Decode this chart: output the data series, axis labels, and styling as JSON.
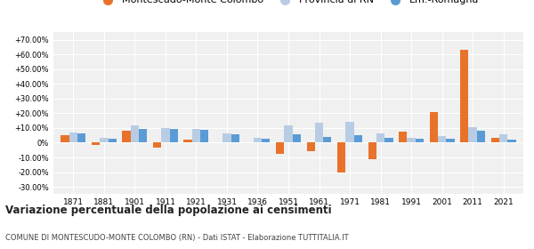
{
  "years": [
    1871,
    1881,
    1901,
    1911,
    1921,
    1931,
    1936,
    1951,
    1961,
    1971,
    1981,
    1991,
    2001,
    2011,
    2021
  ],
  "montescudo": [
    5.0,
    -1.5,
    8.0,
    -3.5,
    2.0,
    0.5,
    0.1,
    -7.5,
    -6.0,
    -20.5,
    -11.0,
    7.5,
    21.0,
    63.0,
    3.5
  ],
  "provincia_rn": [
    7.0,
    3.5,
    11.5,
    10.0,
    9.5,
    6.5,
    3.5,
    12.0,
    13.5,
    14.0,
    6.5,
    3.5,
    4.5,
    10.5,
    5.5
  ],
  "emilia_romagna": [
    6.5,
    3.0,
    9.5,
    9.5,
    9.0,
    6.0,
    3.0,
    5.5,
    4.0,
    5.0,
    3.5,
    3.0,
    2.5,
    8.0,
    2.0
  ],
  "color_montescudo": "#e8722a",
  "color_provincia": "#b8cce4",
  "color_emilia": "#5b9bd5",
  "title1": "Variazione percentuale della popolazione ai censimenti",
  "title2": "COMUNE DI MONTESCUDO-MONTE COLOMBO (RN) - Dati ISTAT - Elaborazione TUTTITALIA.IT",
  "ylim": [
    -35,
    75
  ],
  "yticks": [
    -30,
    -20,
    -10,
    0,
    10,
    20,
    30,
    40,
    50,
    60,
    70
  ],
  "background_color": "#f0f0f0",
  "legend_labels": [
    "Montescudo-Monte Colombo",
    "Provincia di RN",
    "Em.-Romagna"
  ]
}
